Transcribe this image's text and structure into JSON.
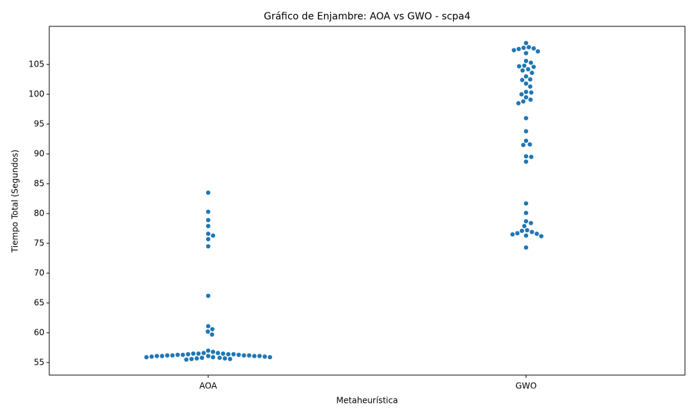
{
  "chart_data": {
    "type": "swarm",
    "title": "Gráfico de Enjambre: AOA vs GWO - scpa4",
    "x_label": "Metaheurística",
    "y_label": "Tiempo Total (Segundos)",
    "categories": [
      "AOA",
      "GWO"
    ],
    "color": "#1f77b4",
    "values": [
      [
        83.5,
        80.3,
        78.9,
        77.9,
        76.6,
        76.3,
        75.7,
        74.5,
        66.2,
        61.1,
        60.6,
        60.2,
        59.7,
        57.0,
        56.8,
        56.6,
        56.6,
        56.5,
        56.5,
        56.5,
        56.4,
        56.4,
        56.4,
        56.3,
        56.3,
        56.3,
        56.2,
        56.2,
        56.2,
        56.2,
        56.1,
        56.1,
        56.1,
        56.1,
        56.1,
        56.0,
        56.0,
        55.9,
        55.9,
        55.9,
        55.8,
        55.8,
        55.7,
        55.7,
        55.6,
        55.6,
        55.5
      ],
      [
        108.6,
        107.9,
        107.8,
        107.7,
        107.6,
        107.4,
        107.2,
        106.9,
        105.6,
        105.3,
        104.8,
        104.7,
        104.6,
        104.2,
        104.0,
        103.6,
        103.0,
        102.5,
        102.4,
        101.8,
        101.3,
        100.4,
        100.3,
        100.0,
        99.5,
        99.1,
        98.8,
        98.5,
        96.0,
        93.8,
        92.2,
        91.6,
        91.5,
        89.6,
        89.5,
        88.7,
        81.7,
        80.1,
        78.7,
        78.4,
        77.9,
        77.2,
        77.1,
        76.9,
        76.7,
        76.6,
        76.5,
        76.3,
        76.2,
        74.3
      ]
    ],
    "ylim": [
      52.9,
      111.4
    ],
    "yticks": [
      55,
      60,
      65,
      70,
      75,
      80,
      85,
      90,
      95,
      100,
      105
    ],
    "grid": false
  }
}
